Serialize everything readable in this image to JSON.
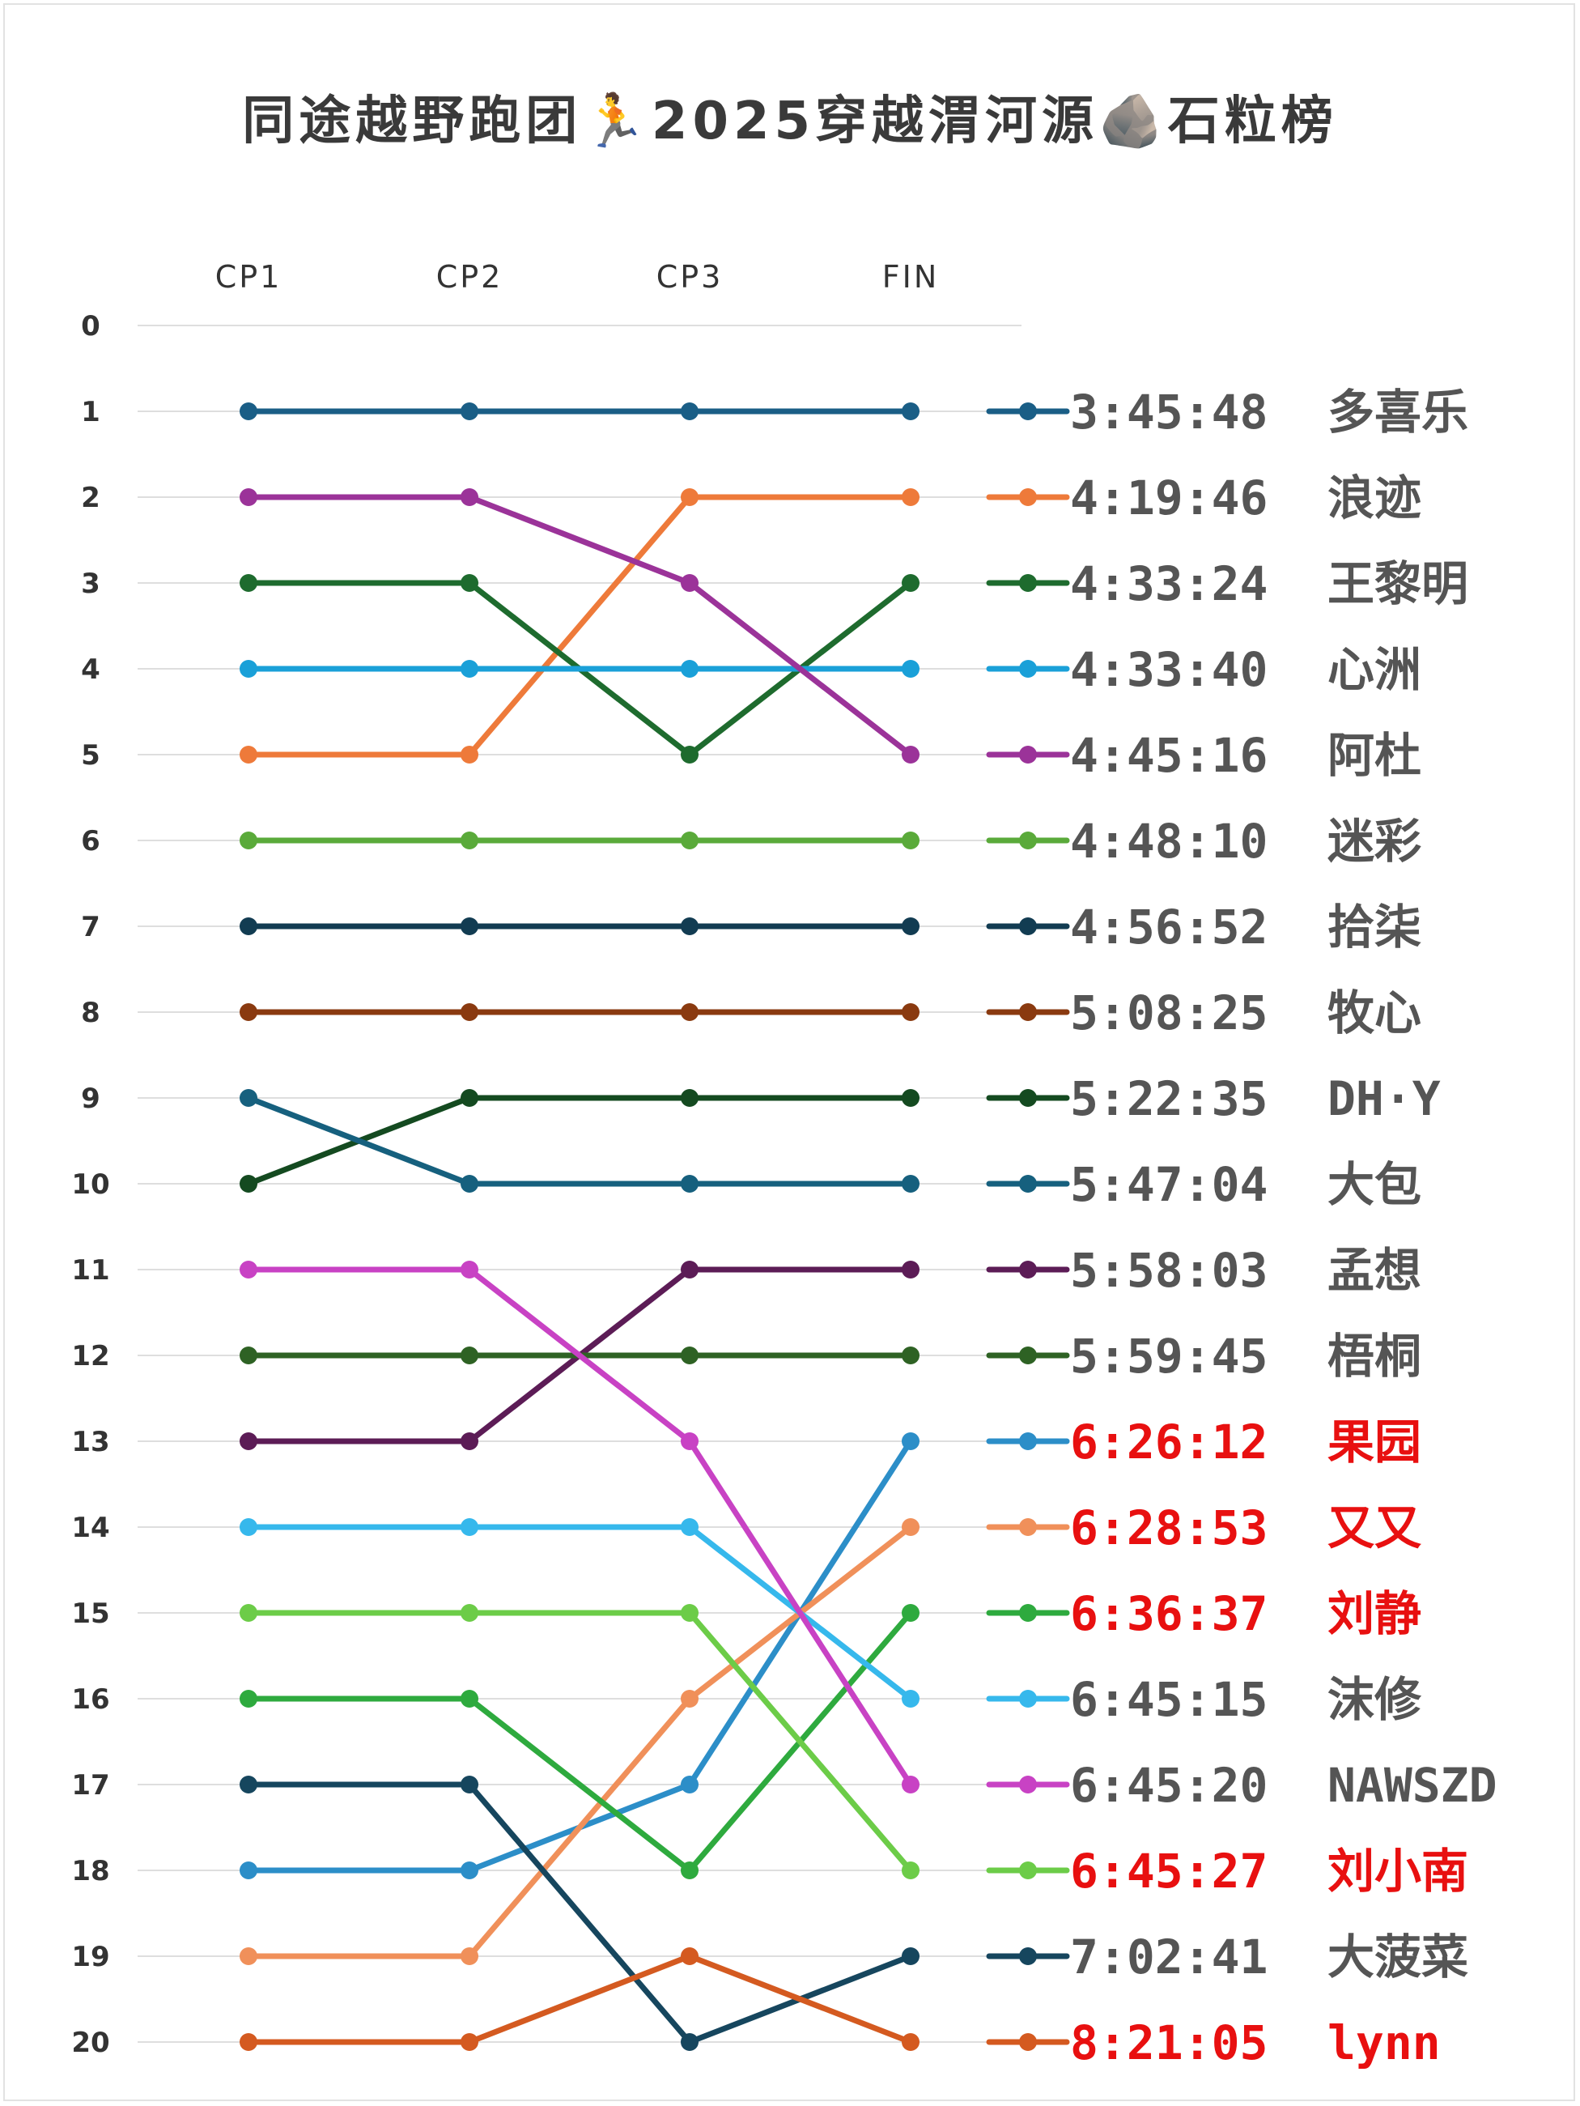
{
  "title": "同途越野跑团🏃2025穿越渭河源🪨石粒榜",
  "chart_data": {
    "type": "line",
    "categories": [
      "CP1",
      "CP2",
      "CP3",
      "FIN"
    ],
    "y_ticks": [
      "0",
      "1",
      "2",
      "3",
      "4",
      "5",
      "6",
      "7",
      "8",
      "9",
      "10",
      "11",
      "12",
      "13",
      "14",
      "15",
      "16",
      "17",
      "18",
      "19",
      "20"
    ],
    "ylim": [
      0,
      20
    ],
    "y_inverted": true,
    "grid": true,
    "series": [
      {
        "name": "多喜乐",
        "time": "3:45:48",
        "color": "#1a5e86",
        "label_color": "#555555",
        "ranks": [
          1,
          1,
          1,
          1
        ]
      },
      {
        "name": "浪迹",
        "time": "4:19:46",
        "color": "#ee7a3a",
        "label_color": "#555555",
        "ranks": [
          5,
          5,
          2,
          2
        ]
      },
      {
        "name": "王黎明",
        "time": "4:33:24",
        "color": "#1e6b2e",
        "label_color": "#555555",
        "ranks": [
          3,
          3,
          5,
          3
        ]
      },
      {
        "name": "心洲",
        "time": "4:33:40",
        "color": "#1aa0d8",
        "label_color": "#555555",
        "ranks": [
          4,
          4,
          4,
          4
        ]
      },
      {
        "name": "阿杜",
        "time": "4:45:16",
        "color": "#9b3399",
        "label_color": "#555555",
        "ranks": [
          2,
          2,
          3,
          5
        ]
      },
      {
        "name": "迷彩",
        "time": "4:48:10",
        "color": "#5aaa3a",
        "label_color": "#555555",
        "ranks": [
          6,
          6,
          6,
          6
        ]
      },
      {
        "name": "拾柒",
        "time": "4:56:52",
        "color": "#123c52",
        "label_color": "#555555",
        "ranks": [
          7,
          7,
          7,
          7
        ]
      },
      {
        "name": "牧心",
        "time": "5:08:25",
        "color": "#8a3a10",
        "label_color": "#555555",
        "ranks": [
          8,
          8,
          8,
          8
        ]
      },
      {
        "name": "DH·Y",
        "time": "5:22:35",
        "color": "#144a20",
        "label_color": "#555555",
        "ranks": [
          10,
          9,
          9,
          9
        ]
      },
      {
        "name": "大包",
        "time": "5:47:04",
        "color": "#16607e",
        "label_color": "#555555",
        "ranks": [
          9,
          10,
          10,
          10
        ]
      },
      {
        "name": "孟想",
        "time": "5:58:03",
        "color": "#5c1c56",
        "label_color": "#555555",
        "ranks": [
          13,
          13,
          11,
          11
        ]
      },
      {
        "name": "梧桐",
        "time": "5:59:45",
        "color": "#2e6224",
        "label_color": "#555555",
        "ranks": [
          12,
          12,
          12,
          12
        ]
      },
      {
        "name": "果园",
        "time": "6:26:12",
        "color": "#2c8ec8",
        "label_color": "#e81010",
        "ranks": [
          18,
          18,
          17,
          13
        ]
      },
      {
        "name": "又又",
        "time": "6:28:53",
        "color": "#f0905a",
        "label_color": "#e81010",
        "ranks": [
          19,
          19,
          16,
          14
        ]
      },
      {
        "name": "刘静",
        "time": "6:36:37",
        "color": "#2eaa3e",
        "label_color": "#e81010",
        "ranks": [
          16,
          16,
          18,
          15
        ]
      },
      {
        "name": "沫修",
        "time": "6:45:15",
        "color": "#36b8ec",
        "label_color": "#555555",
        "ranks": [
          14,
          14,
          14,
          16
        ]
      },
      {
        "name": "NAWSZD",
        "time": "6:45:20",
        "color": "#c842c4",
        "label_color": "#555555",
        "ranks": [
          11,
          11,
          13,
          17
        ]
      },
      {
        "name": "刘小南",
        "time": "6:45:27",
        "color": "#6ccc48",
        "label_color": "#e81010",
        "ranks": [
          15,
          15,
          15,
          18
        ]
      },
      {
        "name": "大菠菜",
        "time": "7:02:41",
        "color": "#16465e",
        "label_color": "#555555",
        "ranks": [
          17,
          17,
          20,
          19
        ]
      },
      {
        "name": "lynn",
        "time": "8:21:05",
        "color": "#d45a20",
        "label_color": "#e81010",
        "ranks": [
          20,
          20,
          19,
          20
        ]
      }
    ]
  }
}
